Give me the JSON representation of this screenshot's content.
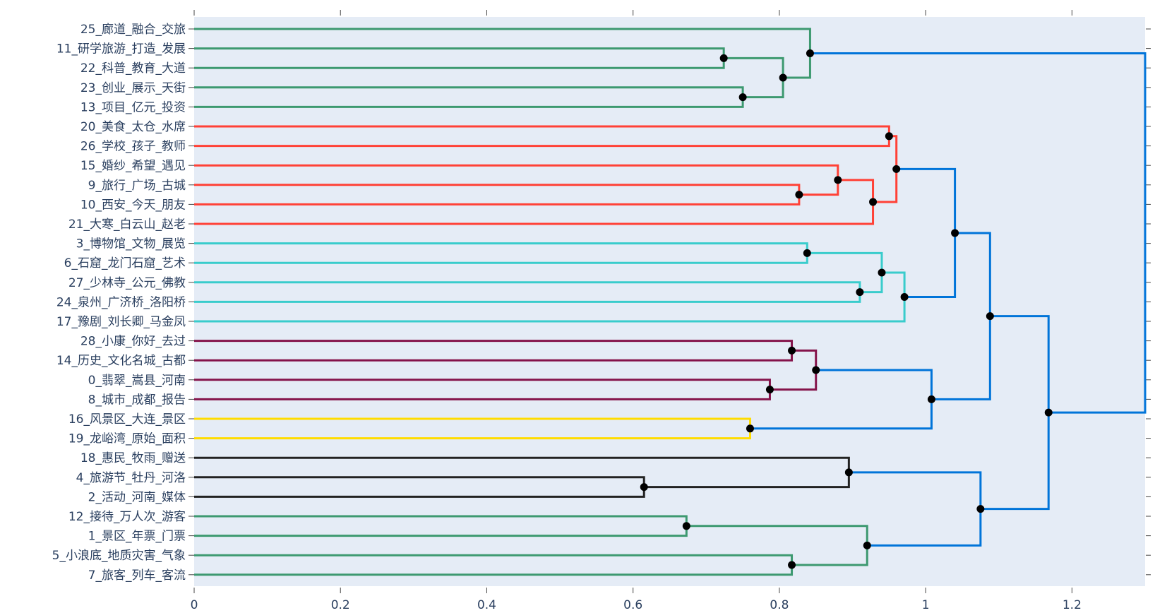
{
  "chart_data": {
    "type": "dendrogram",
    "orientation": "horizontal",
    "xlim": [
      0,
      1.3
    ],
    "x_ticks": [
      "0",
      "0.2",
      "0.4",
      "0.6",
      "0.8",
      "1",
      "1.2"
    ],
    "x_tick_values": [
      0,
      0.2,
      0.4,
      0.6,
      0.8,
      1.0,
      1.2
    ],
    "grid": false,
    "leaves": [
      "25_廊道_融合_交旅",
      "11_研学旅游_打造_发展",
      "22_科普_教育_大道",
      "23_创业_展示_天街",
      "13_项目_亿元_投资",
      "20_美食_太仓_水席",
      "26_学校_孩子_教师",
      "15_婚纱_希望_遇见",
      "9_旅行_广场_古城",
      "10_西安_今天_朋友",
      "21_大寒_白云山_赵老",
      "3_博物馆_文物_展览",
      "6_石窟_龙门石窟_艺术",
      "27_少林寺_公元_佛教",
      "24_泉州_广济桥_洛阳桥",
      "17_豫剧_刘长卿_马金凤",
      "28_小康_你好_去过",
      "14_历史_文化名城_古都",
      "0_翡翠_嵩县_河南",
      "8_城市_成都_报告",
      "16_风景区_大连_景区",
      "19_龙峪湾_原始_面积",
      "18_惠民_牧雨_赠送",
      "4_旅游节_牡丹_河洛",
      "2_活动_河南_媒体",
      "12_接待_万人次_游客",
      "1_景区_年票_门票",
      "5_小浪底_地质灾害_气象",
      "7_旅客_列车_客流"
    ],
    "merges": [
      {
        "a": "L1",
        "b": "L2",
        "height": 0.724,
        "color": "#3d9970"
      },
      {
        "a": "L3",
        "b": "L4",
        "height": 0.75,
        "color": "#3d9970"
      },
      {
        "a": "M0",
        "b": "M1",
        "height": 0.805,
        "color": "#3d9970"
      },
      {
        "a": "L0",
        "b": "M2",
        "height": 0.842,
        "color": "#3d9970"
      },
      {
        "a": "L5",
        "b": "L6",
        "height": 0.95,
        "color": "#ff4136"
      },
      {
        "a": "L8",
        "b": "L9",
        "height": 0.827,
        "color": "#ff4136"
      },
      {
        "a": "L7",
        "b": "M5",
        "height": 0.88,
        "color": "#ff4136"
      },
      {
        "a": "M6",
        "b": "L10",
        "height": 0.928,
        "color": "#ff4136"
      },
      {
        "a": "M4",
        "b": "M7",
        "height": 0.96,
        "color": "#ff4136"
      },
      {
        "a": "L11",
        "b": "L12",
        "height": 0.838,
        "color": "#39cccc"
      },
      {
        "a": "L13",
        "b": "L14",
        "height": 0.91,
        "color": "#39cccc"
      },
      {
        "a": "M9",
        "b": "M10",
        "height": 0.94,
        "color": "#39cccc"
      },
      {
        "a": "M11",
        "b": "L15",
        "height": 0.971,
        "color": "#39cccc"
      },
      {
        "a": "M8",
        "b": "M12",
        "height": 1.04,
        "color": "#0074d9"
      },
      {
        "a": "L16",
        "b": "L17",
        "height": 0.817,
        "color": "#85144b"
      },
      {
        "a": "L18",
        "b": "L19",
        "height": 0.787,
        "color": "#85144b"
      },
      {
        "a": "M14",
        "b": "M15",
        "height": 0.85,
        "color": "#85144b"
      },
      {
        "a": "L20",
        "b": "L21",
        "height": 0.76,
        "color": "#ffdc00"
      },
      {
        "a": "M16",
        "b": "M17",
        "height": 1.008,
        "color": "#0074d9"
      },
      {
        "a": "M13",
        "b": "M18",
        "height": 1.088,
        "color": "#0074d9"
      },
      {
        "a": "L23",
        "b": "L24",
        "height": 0.615,
        "color": "#222222"
      },
      {
        "a": "L22",
        "b": "M20",
        "height": 0.895,
        "color": "#222222"
      },
      {
        "a": "L25",
        "b": "L26",
        "height": 0.673,
        "color": "#3d9970"
      },
      {
        "a": "L27",
        "b": "L28",
        "height": 0.817,
        "color": "#3d9970"
      },
      {
        "a": "M22",
        "b": "M23",
        "height": 0.92,
        "color": "#3d9970"
      },
      {
        "a": "M21",
        "b": "M24",
        "height": 1.075,
        "color": "#0074d9"
      },
      {
        "a": "M19",
        "b": "M25",
        "height": 1.168,
        "color": "#0074d9"
      },
      {
        "a": "M3",
        "b": "M26",
        "height": 1.3,
        "color": "#0074d9"
      }
    ],
    "colors": {
      "plot_background": "#e5ecf6",
      "text": "#2a3f5f",
      "node": "#000000"
    }
  }
}
